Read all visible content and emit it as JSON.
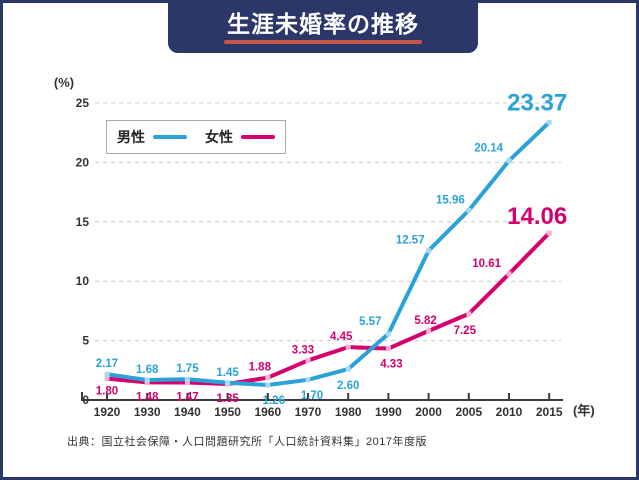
{
  "page": {
    "title": "生涯未婚率の推移",
    "source": "出典：国立社会保障・人口問題研究所「人口統計資料集」2017年度版"
  },
  "colors": {
    "banner_navy": "#2a3768",
    "title_underline_red": "#c9544a",
    "grid_gray": "#c9c9c9",
    "axis_dark": "#3a3a3a"
  },
  "chart_data": {
    "type": "line",
    "title": "生涯未婚率の推移",
    "ylabel_unit": "(%)",
    "xlabel_unit": "(年)",
    "categories": [
      "1920",
      "1930",
      "1940",
      "1950",
      "1960",
      "1970",
      "1980",
      "1990",
      "2000",
      "2005",
      "2010",
      "2015"
    ],
    "y_ticks": [
      0,
      5,
      10,
      15,
      20,
      25
    ],
    "ylim": [
      0,
      25
    ],
    "grid": "horizontal-dashed",
    "legend_position": "top-left-inside",
    "series": [
      {
        "name": "男性",
        "color": "#29a2d8",
        "marker_color": "#a9d9f2",
        "values": [
          2.17,
          1.68,
          1.75,
          1.45,
          1.26,
          1.7,
          2.6,
          5.57,
          12.57,
          15.96,
          20.14,
          23.37
        ]
      },
      {
        "name": "女性",
        "color": "#d5006e",
        "marker_color": "#f3b3d4",
        "values": [
          1.8,
          1.48,
          1.47,
          1.35,
          1.88,
          3.33,
          4.45,
          4.33,
          5.82,
          7.25,
          10.61,
          14.06
        ]
      }
    ]
  }
}
